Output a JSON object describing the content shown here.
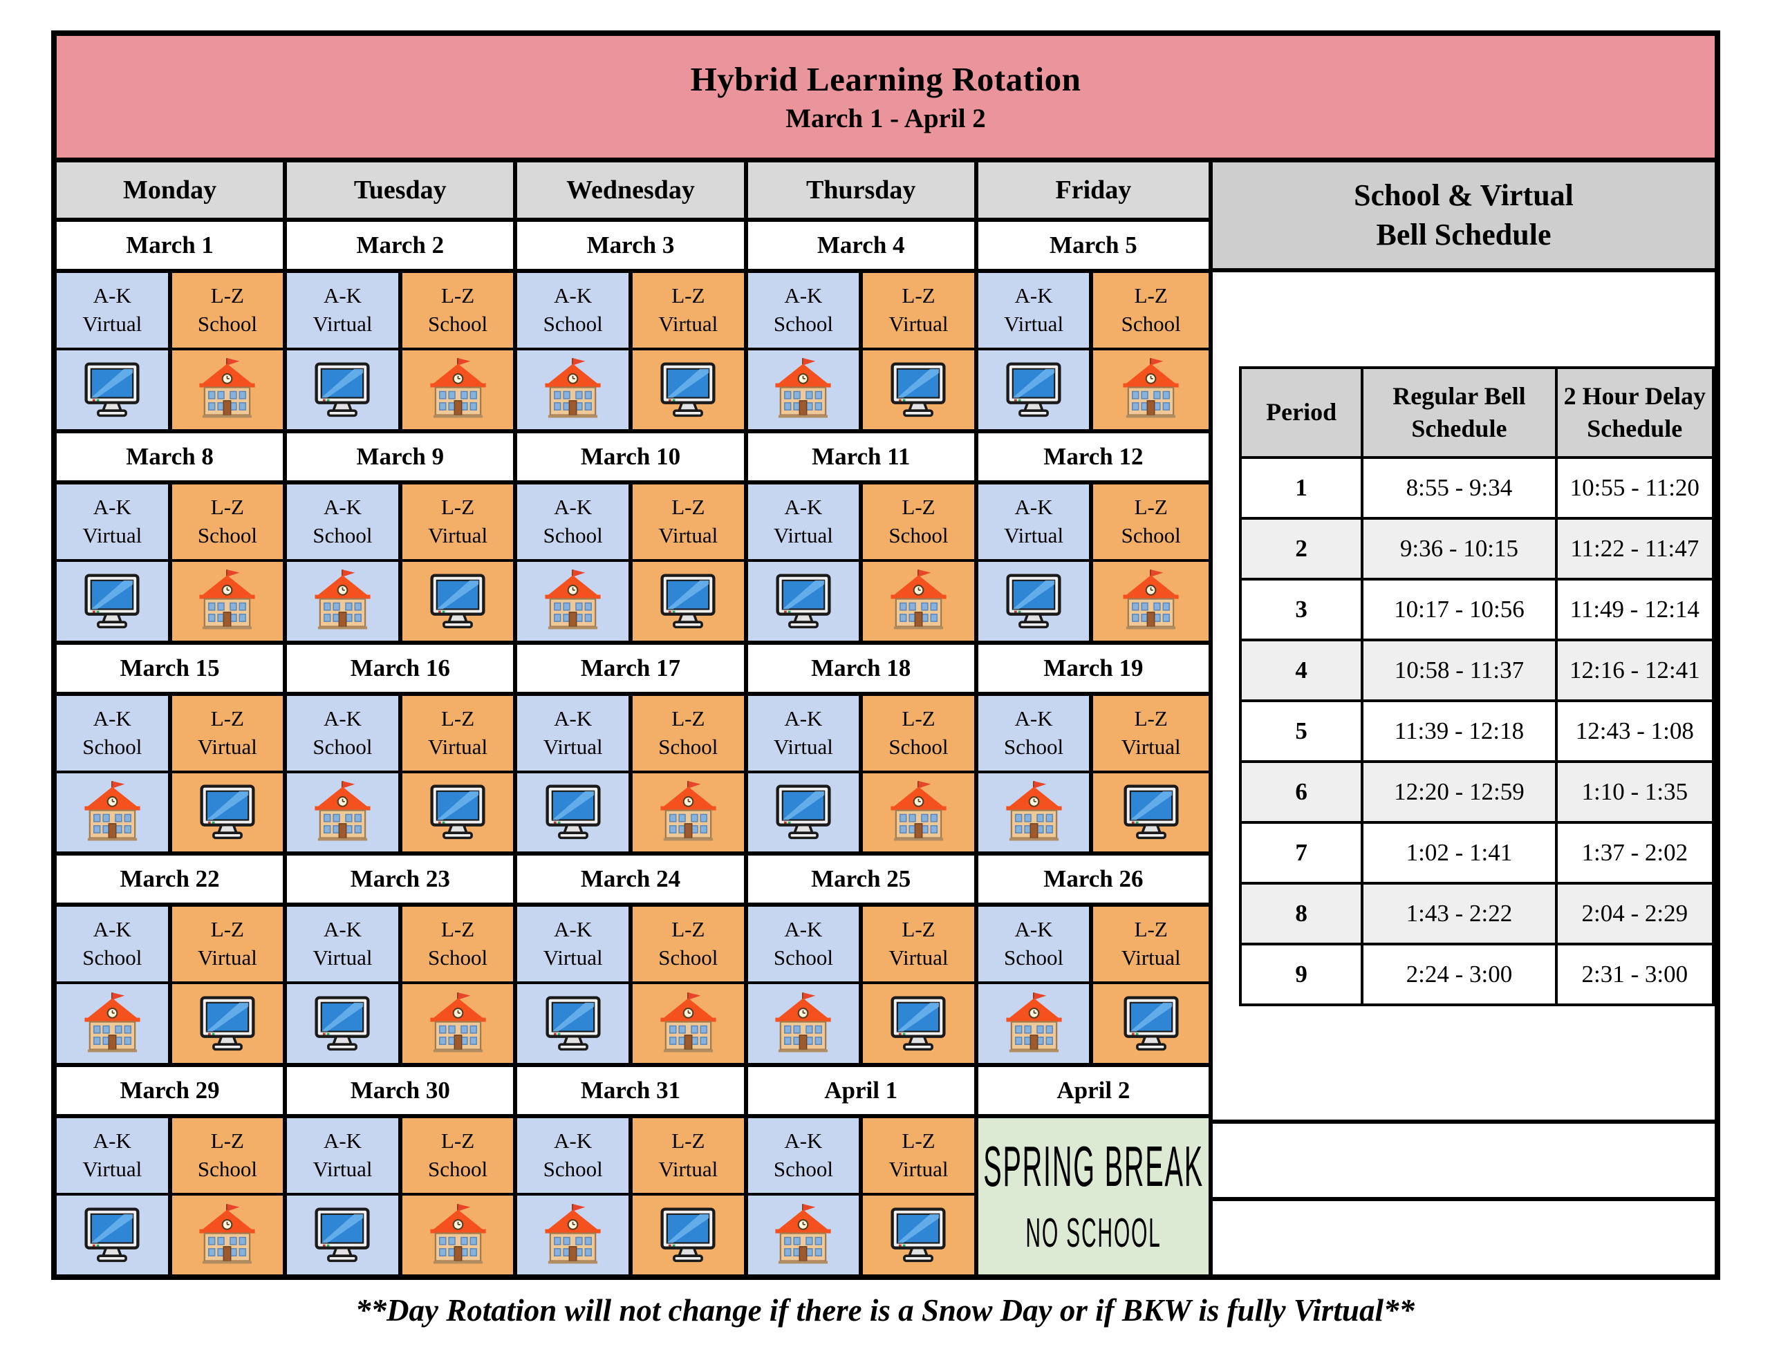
{
  "title": {
    "line1": "Hybrid Learning Rotation",
    "line2": "March 1 - April 2"
  },
  "calendar": {
    "day_headers": [
      "Monday",
      "Tuesday",
      "Wednesday",
      "Thursday",
      "Friday"
    ],
    "groups": {
      "left": "A-K",
      "right": "L-Z"
    },
    "weeks": [
      {
        "days": [
          {
            "date": "March 1",
            "ak": "Virtual",
            "lz": "School"
          },
          {
            "date": "March 2",
            "ak": "Virtual",
            "lz": "School"
          },
          {
            "date": "March 3",
            "ak": "School",
            "lz": "Virtual"
          },
          {
            "date": "March 4",
            "ak": "School",
            "lz": "Virtual"
          },
          {
            "date": "March 5",
            "ak": "Virtual",
            "lz": "School"
          }
        ]
      },
      {
        "days": [
          {
            "date": "March 8",
            "ak": "Virtual",
            "lz": "School"
          },
          {
            "date": "March 9",
            "ak": "School",
            "lz": "Virtual"
          },
          {
            "date": "March 10",
            "ak": "School",
            "lz": "Virtual"
          },
          {
            "date": "March 11",
            "ak": "Virtual",
            "lz": "School"
          },
          {
            "date": "March 12",
            "ak": "Virtual",
            "lz": "School"
          }
        ]
      },
      {
        "days": [
          {
            "date": "March 15",
            "ak": "School",
            "lz": "Virtual"
          },
          {
            "date": "March 16",
            "ak": "School",
            "lz": "Virtual"
          },
          {
            "date": "March 17",
            "ak": "Virtual",
            "lz": "School"
          },
          {
            "date": "March 18",
            "ak": "Virtual",
            "lz": "School"
          },
          {
            "date": "March 19",
            "ak": "School",
            "lz": "Virtual"
          }
        ]
      },
      {
        "days": [
          {
            "date": "March 22",
            "ak": "School",
            "lz": "Virtual"
          },
          {
            "date": "March 23",
            "ak": "Virtual",
            "lz": "School"
          },
          {
            "date": "March 24",
            "ak": "Virtual",
            "lz": "School"
          },
          {
            "date": "March 25",
            "ak": "School",
            "lz": "Virtual"
          },
          {
            "date": "March 26",
            "ak": "School",
            "lz": "Virtual"
          }
        ]
      },
      {
        "days": [
          {
            "date": "March 29",
            "ak": "Virtual",
            "lz": "School"
          },
          {
            "date": "March 30",
            "ak": "Virtual",
            "lz": "School"
          },
          {
            "date": "March 31",
            "ak": "School",
            "lz": "Virtual"
          },
          {
            "date": "April 1",
            "ak": "School",
            "lz": "Virtual"
          },
          {
            "date": "April 2",
            "break": {
              "line1": "SPRING BREAK",
              "line2": "NO SCHOOL"
            }
          }
        ]
      }
    ]
  },
  "bell_schedule": {
    "title_line1": "School & Virtual",
    "title_line2": "Bell Schedule",
    "columns": [
      "Period",
      "Regular Bell Schedule",
      "2 Hour Delay Schedule"
    ],
    "rows": [
      {
        "period": "1",
        "regular": "8:55 - 9:34",
        "delay": "10:55 - 11:20"
      },
      {
        "period": "2",
        "regular": "9:36 - 10:15",
        "delay": "11:22 - 11:47"
      },
      {
        "period": "3",
        "regular": "10:17 - 10:56",
        "delay": "11:49 - 12:14"
      },
      {
        "period": "4",
        "regular": "10:58 - 11:37",
        "delay": "12:16 - 12:41"
      },
      {
        "period": "5",
        "regular": "11:39 - 12:18",
        "delay": "12:43 - 1:08"
      },
      {
        "period": "6",
        "regular": "12:20 - 12:59",
        "delay": "1:10 - 1:35"
      },
      {
        "period": "7",
        "regular": "1:02 - 1:41",
        "delay": "1:37 - 2:02"
      },
      {
        "period": "8",
        "regular": "1:43 - 2:22",
        "delay": "2:04 - 2:29"
      },
      {
        "period": "9",
        "regular": "2:24 - 3:00",
        "delay": "2:31 - 3:00"
      }
    ]
  },
  "icons": {
    "virtual": "computer-icon",
    "school": "school-icon"
  },
  "colors": {
    "banner": "#e9959b",
    "ak_cell": "#c7d6f0",
    "lz_cell": "#f3ae68",
    "break_cell": "#dcead3",
    "day_header": "#d9d9d9",
    "bell_header": "#cecece",
    "alt_row": "#efefef"
  },
  "footer": "**Day Rotation will not change if there is a Snow Day or if BKW is fully Virtual**"
}
